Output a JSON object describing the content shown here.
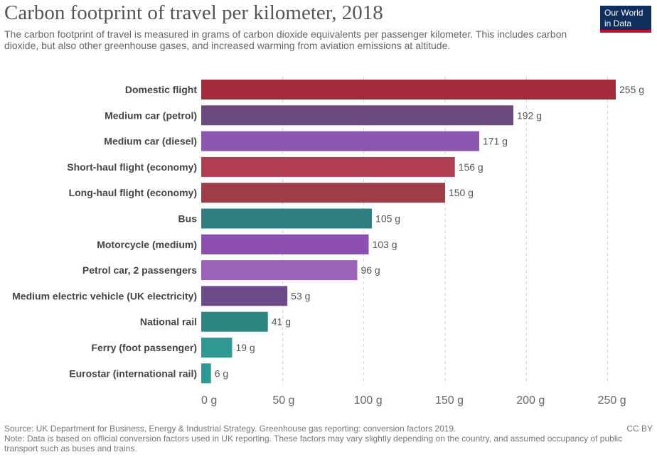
{
  "header": {
    "title": "Carbon footprint of travel per kilometer, 2018",
    "subtitle": "The carbon footprint of travel is measured in grams of carbon dioxide equivalents per passenger kilometer. This includes carbon dioxide, but also other greenhouse gases, and increased warming from aviation emissions at altitude."
  },
  "logo": {
    "line1": "Our World",
    "line2": "in Data"
  },
  "footer": {
    "source": "Source: UK Department for Business, Energy & Industrial Strategy. Greenhouse gas reporting: conversion factors 2019.",
    "license": "CC BY",
    "note": "Note: Data is based on official conversion factors used in UK reporting. These factors may vary slightly depending on the country, and assumed occupancy of public transport such as buses and trains."
  },
  "chart_data": {
    "type": "bar",
    "orientation": "horizontal",
    "title": "Carbon footprint of travel per kilometer, 2018",
    "unit": "g",
    "xlim": [
      0,
      255
    ],
    "xticks": [
      0,
      50,
      100,
      150,
      200,
      250
    ],
    "xtick_labels": [
      "0 g",
      "50 g",
      "100 g",
      "150 g",
      "200 g",
      "250 g"
    ],
    "grid": true,
    "categories": [
      "Domestic flight",
      "Medium car (petrol)",
      "Medium car (diesel)",
      "Short-haul flight (economy)",
      "Long-haul flight (economy)",
      "Bus",
      "Motorcycle (medium)",
      "Petrol car, 2 passengers",
      "Medium electric vehicle (UK electricity)",
      "National rail",
      "Ferry (foot passenger)",
      "Eurostar (international rail)"
    ],
    "values": [
      255,
      192,
      171,
      156,
      150,
      105,
      103,
      96,
      53,
      41,
      19,
      6
    ],
    "value_labels": [
      "255 g",
      "192 g",
      "171 g",
      "156 g",
      "150 g",
      "105 g",
      "103 g",
      "96 g",
      "53 g",
      "41 g",
      "19 g",
      "6 g"
    ],
    "colors": [
      "#a52a3c",
      "#6a4a7e",
      "#8b55b0",
      "#b03e50",
      "#9c3d48",
      "#2e7f7d",
      "#8a4fb0",
      "#9a62b9",
      "#6b4a87",
      "#2d8580",
      "#2f9a94",
      "#2f9a94"
    ]
  }
}
